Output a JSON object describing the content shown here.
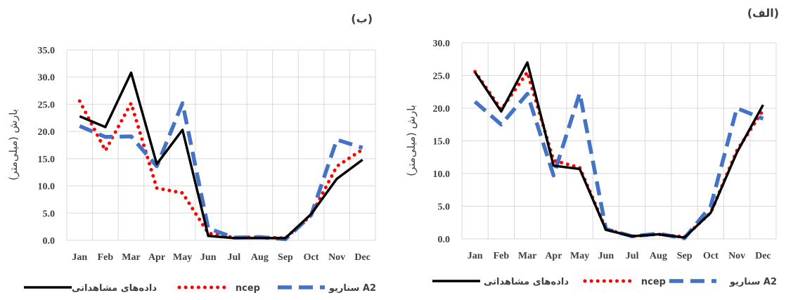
{
  "chart_data": [
    {
      "type": "line",
      "panel_title": "(ب)",
      "ylabel": "بارش (میلی‌متر)",
      "categories": [
        "Jan",
        "Feb",
        "Mar",
        "Apr",
        "May",
        "Jun",
        "Jul",
        "Aug",
        "Sep",
        "Oct",
        "Nov",
        "Dec"
      ],
      "ylim": [
        0,
        35
      ],
      "yticks": [
        "0.0",
        "5.0",
        "10.0",
        "15.0",
        "20.0",
        "25.0",
        "30.0",
        "35.0"
      ],
      "grid": true,
      "legend_position": "bottom",
      "series": [
        {
          "name": "داده‌های مشاهداتی",
          "color": "#000000",
          "style": "solid",
          "values": [
            22.8,
            20.8,
            30.8,
            14.0,
            20.3,
            0.8,
            0.4,
            0.4,
            0.4,
            4.8,
            11.3,
            14.8
          ]
        },
        {
          "name": "ncep",
          "color": "#ff0000",
          "style": "dotted",
          "values": [
            25.6,
            16.5,
            25.2,
            9.6,
            8.7,
            1.3,
            0.5,
            0.6,
            0.4,
            4.6,
            13.6,
            16.7
          ]
        },
        {
          "name": "سناریو A2",
          "color": "#4472c4",
          "style": "dashed",
          "values": [
            21.0,
            19.0,
            19.1,
            13.6,
            25.2,
            2.2,
            0.5,
            0.6,
            0.2,
            4.6,
            18.5,
            17.0
          ]
        }
      ]
    },
    {
      "type": "line",
      "panel_title": "(الف)",
      "ylabel": "بارش (میلی‌متر)",
      "categories": [
        "Jan",
        "Feb",
        "Mar",
        "Apr",
        "May",
        "Jun",
        "Jul",
        "Aug",
        "Sep",
        "Oct",
        "Nov",
        "Dec"
      ],
      "ylim": [
        0,
        30
      ],
      "yticks": [
        "0.0",
        "5.0",
        "10.0",
        "15.0",
        "20.0",
        "25.0",
        "30.0"
      ],
      "grid": true,
      "legend_position": "bottom",
      "series": [
        {
          "name": "داده‌های مشاهداتی",
          "color": "#000000",
          "style": "solid",
          "values": [
            25.5,
            19.5,
            27.0,
            11.2,
            10.7,
            1.4,
            0.4,
            0.7,
            0.2,
            4.0,
            13.2,
            20.5
          ]
        },
        {
          "name": "ncep",
          "color": "#ff0000",
          "style": "dotted",
          "values": [
            25.6,
            19.8,
            25.5,
            12.0,
            10.9,
            1.5,
            0.4,
            0.7,
            0.3,
            4.0,
            13.5,
            19.7
          ]
        },
        {
          "name": "سناریو A2",
          "color": "#4472c4",
          "style": "dashed",
          "values": [
            21.0,
            17.5,
            22.2,
            9.7,
            22.3,
            1.5,
            0.4,
            0.8,
            0.1,
            5.0,
            20.0,
            18.4
          ]
        }
      ]
    }
  ]
}
